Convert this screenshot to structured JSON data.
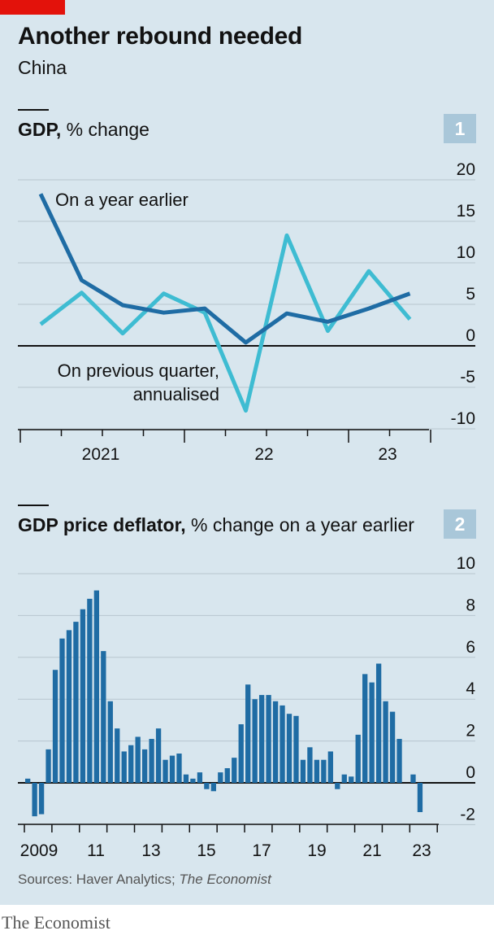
{
  "title": "Another rebound needed",
  "subtitle": "China",
  "sources_label": "Sources: Haver Analytics; ",
  "sources_italic": "The Economist",
  "brand": "The Economist",
  "colors": {
    "accent": "#e3120b",
    "dark_line": "#1f6ca4",
    "light_line": "#3ebcd2",
    "bars": "#1f6ca4",
    "background": "#d8e6ee",
    "badge": "#a9c7d9"
  },
  "chart_data": [
    {
      "type": "line",
      "number": "1",
      "title": "GDP,",
      "subtitle": "% change",
      "quarters": [
        "2021Q1",
        "2021Q2",
        "2021Q3",
        "2021Q4",
        "2022Q1",
        "2022Q2",
        "2022Q3",
        "2022Q4",
        "2023Q1",
        "2023Q2"
      ],
      "x_ticks": [
        "2021",
        "22",
        "23"
      ],
      "y_ticks": [
        20,
        15,
        10,
        5,
        0,
        -5,
        -10
      ],
      "ylim": [
        -10,
        20
      ],
      "grid": true,
      "series": [
        {
          "name": "On a year earlier",
          "values": [
            18.3,
            7.9,
            4.9,
            4.0,
            4.5,
            0.4,
            3.9,
            2.9,
            4.5,
            6.3
          ]
        },
        {
          "name_line1": "On previous quarter,",
          "name_line2": "annualised",
          "values": [
            2.6,
            6.4,
            1.5,
            6.3,
            4.0,
            -7.8,
            13.3,
            1.8,
            9.0,
            3.2
          ]
        }
      ]
    },
    {
      "type": "bar",
      "number": "2",
      "title": "GDP price deflator,",
      "subtitle": "% change on a year earlier",
      "start_quarter": "2009Q1",
      "x_ticks": [
        "2009",
        "11",
        "13",
        "15",
        "17",
        "19",
        "21",
        "23"
      ],
      "y_ticks": [
        10,
        8,
        6,
        4,
        2,
        0,
        -2
      ],
      "ylim": [
        -2.5,
        10
      ],
      "grid": true,
      "values": [
        0.2,
        -1.6,
        -1.5,
        1.6,
        5.4,
        6.9,
        7.3,
        7.7,
        8.3,
        8.8,
        9.2,
        6.3,
        3.9,
        2.6,
        1.5,
        1.8,
        2.2,
        1.6,
        2.1,
        2.6,
        1.1,
        1.3,
        1.4,
        0.4,
        0.2,
        0.5,
        -0.3,
        -0.4,
        0.5,
        0.7,
        1.2,
        2.8,
        4.7,
        4.0,
        4.2,
        4.2,
        3.9,
        3.7,
        3.3,
        3.2,
        1.1,
        1.7,
        1.1,
        1.1,
        1.5,
        -0.3,
        0.4,
        0.3,
        2.3,
        5.2,
        4.8,
        5.7,
        3.9,
        3.4,
        2.1,
        0,
        0.4,
        -1.4
      ]
    }
  ]
}
